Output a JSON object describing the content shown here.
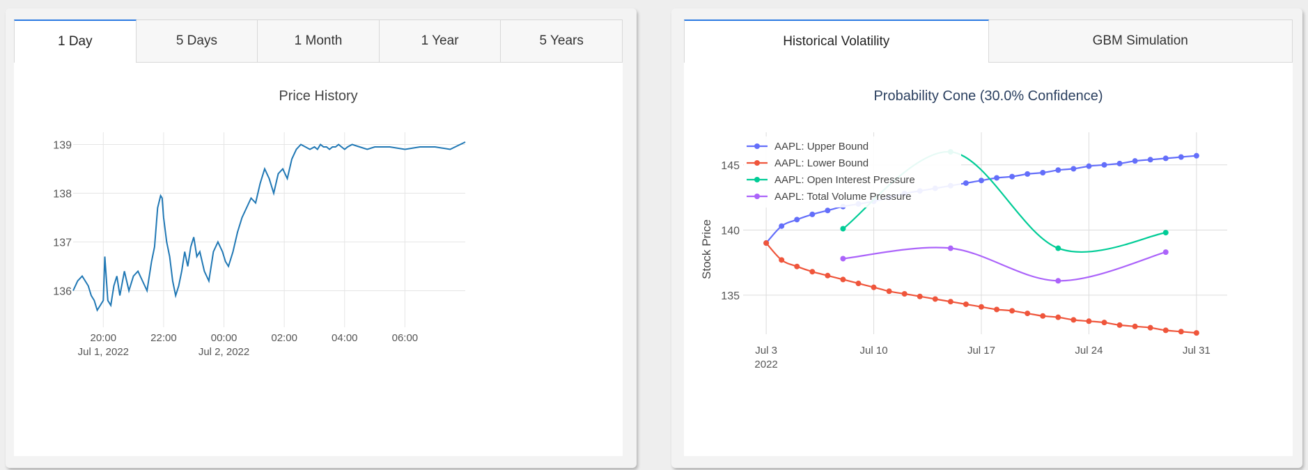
{
  "left": {
    "tabs": [
      {
        "label": "1 Day",
        "active": true
      },
      {
        "label": "5 Days",
        "active": false
      },
      {
        "label": "1 Month",
        "active": false
      },
      {
        "label": "1 Year",
        "active": false
      },
      {
        "label": "5 Years",
        "active": false
      }
    ]
  },
  "right": {
    "tabs": [
      {
        "label": "Historical Volatility",
        "active": true
      },
      {
        "label": "GBM Simulation",
        "active": false
      }
    ]
  },
  "colors": {
    "price_line": "#1f77b4",
    "upper": "#636efa",
    "lower": "#ef553b",
    "oi": "#00cc96",
    "vol": "#ab63fa",
    "grid": "#e5e5e5",
    "tab_accent": "#2a7ae2"
  },
  "chart_data": [
    {
      "type": "line",
      "title": "Price History",
      "xlabel": "",
      "ylabel": "",
      "x_ticks": [
        {
          "label": "20:00",
          "sub": "Jul 1, 2022",
          "hour": 0
        },
        {
          "label": "22:00",
          "sub": "",
          "hour": 2
        },
        {
          "label": "00:00",
          "sub": "Jul 2, 2022",
          "hour": 4
        },
        {
          "label": "02:00",
          "sub": "",
          "hour": 6
        },
        {
          "label": "04:00",
          "sub": "",
          "hour": 8
        },
        {
          "label": "06:00",
          "sub": "",
          "hour": 10
        }
      ],
      "xlim_hours": [
        -1,
        12.0
      ],
      "ylim": [
        135.25,
        139.25
      ],
      "y_ticks": [
        136,
        137,
        138,
        139
      ],
      "series": [
        {
          "x_hours": [
            -1,
            -0.85,
            -0.7,
            -0.5,
            -0.4,
            -0.3,
            -0.2,
            -0.1,
            0,
            0.05,
            0.15,
            0.25,
            0.35,
            0.45,
            0.55,
            0.7,
            0.85,
            1.0,
            1.15,
            1.3,
            1.45,
            1.6,
            1.7,
            1.8,
            1.9,
            1.95,
            2.0,
            2.1,
            2.2,
            2.3,
            2.4,
            2.5,
            2.6,
            2.7,
            2.8,
            2.9,
            3.0,
            3.1,
            3.2,
            3.35,
            3.5,
            3.65,
            3.8,
            3.95,
            4.05,
            4.15,
            4.3,
            4.45,
            4.6,
            4.75,
            4.9,
            5.05,
            5.2,
            5.35,
            5.5,
            5.65,
            5.8,
            5.95,
            6.1,
            6.25,
            6.4,
            6.55,
            6.7,
            6.85,
            7.0,
            7.1,
            7.2,
            7.3,
            7.4,
            7.5,
            7.6,
            7.7,
            7.8,
            7.9,
            8.0,
            8.1,
            8.25,
            8.5,
            8.75,
            9.0,
            9.5,
            10.0,
            10.5,
            11.0,
            11.5,
            12.0
          ],
          "y": [
            136.0,
            136.2,
            136.3,
            136.1,
            135.9,
            135.8,
            135.6,
            135.7,
            135.8,
            136.7,
            135.8,
            135.7,
            136.1,
            136.3,
            135.9,
            136.4,
            136.0,
            136.3,
            136.4,
            136.2,
            136.0,
            136.6,
            136.9,
            137.7,
            137.95,
            137.9,
            137.5,
            137.0,
            136.7,
            136.2,
            135.9,
            136.1,
            136.4,
            136.8,
            136.5,
            136.9,
            137.1,
            136.7,
            136.8,
            136.4,
            136.2,
            136.8,
            137.0,
            136.8,
            136.6,
            136.5,
            136.8,
            137.2,
            137.5,
            137.7,
            137.9,
            137.8,
            138.2,
            138.5,
            138.3,
            138.0,
            138.4,
            138.5,
            138.3,
            138.7,
            138.9,
            139.0,
            138.95,
            138.9,
            138.95,
            138.9,
            139.0,
            138.95,
            138.95,
            138.9,
            138.95,
            138.95,
            139.0,
            138.95,
            138.9,
            138.95,
            139.0,
            138.95,
            138.9,
            138.95,
            138.95,
            138.9,
            138.95,
            138.95,
            138.9,
            139.05
          ]
        }
      ]
    },
    {
      "type": "line",
      "title": "Probability Cone (30.0% Confidence)",
      "xlabel": "",
      "ylabel": "Stock Price",
      "x_ticks": [
        {
          "label": "Jul 3",
          "sub": "2022",
          "day": 0
        },
        {
          "label": "Jul 10",
          "sub": "",
          "day": 7
        },
        {
          "label": "Jul 17",
          "sub": "",
          "day": 14
        },
        {
          "label": "Jul 24",
          "sub": "",
          "day": 21
        },
        {
          "label": "Jul 31",
          "sub": "",
          "day": 28
        }
      ],
      "xlim_days": [
        -1.5,
        30
      ],
      "ylim": [
        132,
        147.5
      ],
      "y_ticks": [
        135,
        140,
        145
      ],
      "legend_position": "top-left",
      "series": [
        {
          "name": "AAPL: Upper Bound",
          "color_key": "upper",
          "x_days": [
            0,
            1,
            2,
            3,
            4,
            5,
            6,
            7,
            8,
            9,
            10,
            11,
            12,
            13,
            14,
            15,
            16,
            17,
            18,
            19,
            20,
            21,
            22,
            23,
            24,
            25,
            26,
            27,
            28
          ],
          "y": [
            139.0,
            140.3,
            140.8,
            141.2,
            141.5,
            141.8,
            142.0,
            142.2,
            142.5,
            142.8,
            143.0,
            143.2,
            143.4,
            143.6,
            143.8,
            144.0,
            144.1,
            144.3,
            144.4,
            144.6,
            144.7,
            144.9,
            145.0,
            145.1,
            145.3,
            145.4,
            145.5,
            145.6,
            145.7
          ]
        },
        {
          "name": "AAPL: Lower Bound",
          "color_key": "lower",
          "x_days": [
            0,
            1,
            2,
            3,
            4,
            5,
            6,
            7,
            8,
            9,
            10,
            11,
            12,
            13,
            14,
            15,
            16,
            17,
            18,
            19,
            20,
            21,
            22,
            23,
            24,
            25,
            26,
            27,
            28
          ],
          "y": [
            139.0,
            137.7,
            137.2,
            136.8,
            136.5,
            136.2,
            135.9,
            135.6,
            135.3,
            135.1,
            134.9,
            134.7,
            134.5,
            134.3,
            134.1,
            133.9,
            133.8,
            133.6,
            133.4,
            133.3,
            133.1,
            133.0,
            132.9,
            132.7,
            132.6,
            132.5,
            132.3,
            132.2,
            132.1
          ]
        },
        {
          "name": "AAPL: Open Interest Pressure",
          "color_key": "oi",
          "x_days": [
            5,
            12,
            19,
            26
          ],
          "y": [
            140.1,
            146.0,
            138.6,
            139.8
          ]
        },
        {
          "name": "AAPL: Total Volume Pressure",
          "color_key": "vol",
          "x_days": [
            5,
            12,
            19,
            26
          ],
          "y": [
            137.8,
            138.6,
            136.1,
            138.3
          ]
        }
      ]
    }
  ]
}
